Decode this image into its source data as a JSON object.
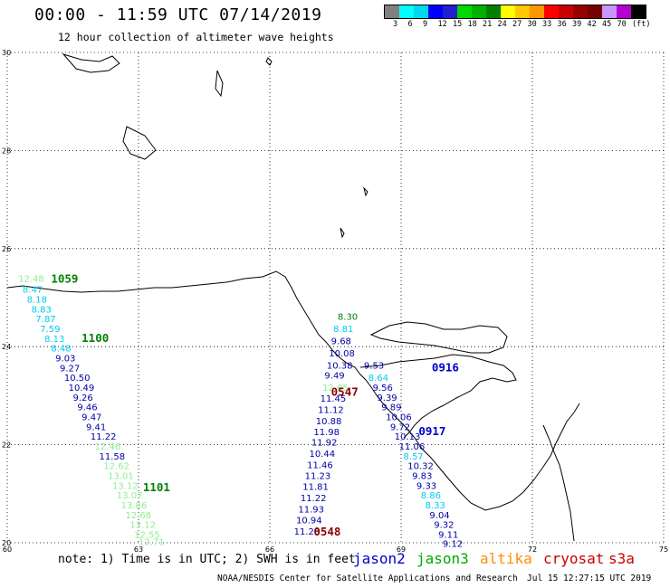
{
  "header": {
    "title": "00:00 - 11:59 UTC 07/14/2019",
    "subtitle": "12 hour collection of altimeter wave heights"
  },
  "legend": {
    "unit": "(ft)",
    "colors": [
      "#808080",
      "#00ffff",
      "#00d8f0",
      "#0000ff",
      "#2020d0",
      "#00d800",
      "#00b000",
      "#008000",
      "#ffff00",
      "#ffc800",
      "#ff9600",
      "#ff0000",
      "#c80000",
      "#960000",
      "#780000",
      "#c896ff",
      "#b400d0",
      "#000000"
    ],
    "labels": [
      "3",
      "6",
      "9",
      "12",
      "15",
      "18",
      "21",
      "24",
      "27",
      "30",
      "33",
      "36",
      "39",
      "42",
      "45",
      "70"
    ]
  },
  "chart_data": {
    "type": "map",
    "x_axis": {
      "ticks": [
        "60",
        "63",
        "66",
        "69",
        "72",
        "75"
      ],
      "range": [
        60,
        75
      ]
    },
    "y_axis": {
      "ticks": [
        "20",
        "22",
        "24",
        "26",
        "28",
        "30"
      ],
      "range": [
        20,
        30
      ]
    },
    "grid": true,
    "time_labels": [
      {
        "text": "1059",
        "color": "#008000",
        "lon": 61.0,
        "lat": 25.3
      },
      {
        "text": "1100",
        "color": "#008000",
        "lon": 61.7,
        "lat": 24.1
      },
      {
        "text": "1101",
        "color": "#008000",
        "lon": 63.1,
        "lat": 21.05
      },
      {
        "text": "0548",
        "color": "#8b0000",
        "lon": 67.0,
        "lat": 20.15
      },
      {
        "text": "0547",
        "color": "#8b0000",
        "lon": 67.4,
        "lat": 23.0
      },
      {
        "text": "0916",
        "color": "#0000cc",
        "lon": 69.7,
        "lat": 23.5
      },
      {
        "text": "0917",
        "color": "#0000cc",
        "lon": 69.4,
        "lat": 22.2
      }
    ],
    "tracks": [
      {
        "name": "jason3 1059-1101",
        "points": [
          {
            "lon": 60.25,
            "lat": 25.32,
            "v": "12.48",
            "c": "#90ee90"
          },
          {
            "lon": 60.35,
            "lat": 25.1,
            "v": "8.47",
            "c": "#00ccee"
          },
          {
            "lon": 60.45,
            "lat": 24.9,
            "v": "8.18",
            "c": "#00ccee"
          },
          {
            "lon": 60.55,
            "lat": 24.7,
            "v": "8.83",
            "c": "#00ccee"
          },
          {
            "lon": 60.65,
            "lat": 24.5,
            "v": "7.87",
            "c": "#00ccee"
          },
          {
            "lon": 60.75,
            "lat": 24.3,
            "v": "7.59",
            "c": "#00ccee"
          },
          {
            "lon": 60.85,
            "lat": 24.1,
            "v": "8.13",
            "c": "#00ccee"
          },
          {
            "lon": 61.0,
            "lat": 23.9,
            "v": "8.48",
            "c": "#00ccee"
          },
          {
            "lon": 61.1,
            "lat": 23.7,
            "v": "9.03",
            "c": "#0000aa"
          },
          {
            "lon": 61.2,
            "lat": 23.5,
            "v": "9.27",
            "c": "#0000aa"
          },
          {
            "lon": 61.3,
            "lat": 23.3,
            "v": "10.50",
            "c": "#0000aa"
          },
          {
            "lon": 61.4,
            "lat": 23.1,
            "v": "10.49",
            "c": "#0000aa"
          },
          {
            "lon": 61.5,
            "lat": 22.9,
            "v": "9.26",
            "c": "#0000aa"
          },
          {
            "lon": 61.6,
            "lat": 22.7,
            "v": "9.46",
            "c": "#0000aa"
          },
          {
            "lon": 61.7,
            "lat": 22.5,
            "v": "9.47",
            "c": "#0000aa"
          },
          {
            "lon": 61.8,
            "lat": 22.3,
            "v": "9.41",
            "c": "#0000aa"
          },
          {
            "lon": 61.9,
            "lat": 22.1,
            "v": "11.22",
            "c": "#0000aa"
          },
          {
            "lon": 62.0,
            "lat": 21.9,
            "v": "12.46",
            "c": "#90ee90"
          },
          {
            "lon": 62.1,
            "lat": 21.7,
            "v": "11.58",
            "c": "#0000aa"
          },
          {
            "lon": 62.2,
            "lat": 21.5,
            "v": "12.62",
            "c": "#90ee90"
          },
          {
            "lon": 62.3,
            "lat": 21.3,
            "v": "13.01",
            "c": "#90ee90"
          },
          {
            "lon": 62.4,
            "lat": 21.1,
            "v": "13.12",
            "c": "#90ee90"
          },
          {
            "lon": 62.5,
            "lat": 20.9,
            "v": "13.07",
            "c": "#90ee90"
          },
          {
            "lon": 62.6,
            "lat": 20.7,
            "v": "13.86",
            "c": "#90ee90"
          },
          {
            "lon": 62.7,
            "lat": 20.5,
            "v": "12.68",
            "c": "#90ee90"
          },
          {
            "lon": 62.8,
            "lat": 20.3,
            "v": "13.12",
            "c": "#90ee90"
          },
          {
            "lon": 62.9,
            "lat": 20.1,
            "v": "12.55",
            "c": "#90ee90"
          },
          {
            "lon": 63.0,
            "lat": 19.95,
            "v": "12.71",
            "c": "#90ee90"
          }
        ]
      },
      {
        "name": "cryosat 0547-0548",
        "points": [
          {
            "lon": 67.55,
            "lat": 24.55,
            "v": "8.30",
            "c": "#008000"
          },
          {
            "lon": 67.45,
            "lat": 24.3,
            "v": "8.81",
            "c": "#00ccee"
          },
          {
            "lon": 67.4,
            "lat": 24.05,
            "v": "9.68",
            "c": "#0000aa"
          },
          {
            "lon": 67.35,
            "lat": 23.8,
            "v": "10.08",
            "c": "#0000aa"
          },
          {
            "lon": 67.3,
            "lat": 23.55,
            "v": "10.38",
            "c": "#0000aa"
          },
          {
            "lon": 67.25,
            "lat": 23.35,
            "v": "9.49",
            "c": "#0000aa"
          },
          {
            "lon": 67.2,
            "lat": 23.1,
            "v": "12.05",
            "c": "#90ee90"
          },
          {
            "lon": 67.15,
            "lat": 22.88,
            "v": "11.45",
            "c": "#0000aa"
          },
          {
            "lon": 67.1,
            "lat": 22.65,
            "v": "11.12",
            "c": "#0000aa"
          },
          {
            "lon": 67.05,
            "lat": 22.42,
            "v": "10.88",
            "c": "#0000aa"
          },
          {
            "lon": 67.0,
            "lat": 22.2,
            "v": "11.98",
            "c": "#0000aa"
          },
          {
            "lon": 66.95,
            "lat": 21.98,
            "v": "11.92",
            "c": "#0000aa"
          },
          {
            "lon": 66.9,
            "lat": 21.75,
            "v": "10.44",
            "c": "#0000aa"
          },
          {
            "lon": 66.85,
            "lat": 21.52,
            "v": "11.46",
            "c": "#0000aa"
          },
          {
            "lon": 66.8,
            "lat": 21.3,
            "v": "11.23",
            "c": "#0000aa"
          },
          {
            "lon": 66.75,
            "lat": 21.08,
            "v": "11.81",
            "c": "#0000aa"
          },
          {
            "lon": 66.7,
            "lat": 20.85,
            "v": "11.22",
            "c": "#0000aa"
          },
          {
            "lon": 66.65,
            "lat": 20.62,
            "v": "11.93",
            "c": "#0000aa"
          },
          {
            "lon": 66.6,
            "lat": 20.4,
            "v": "10.94",
            "c": "#0000aa"
          },
          {
            "lon": 66.55,
            "lat": 20.17,
            "v": "11.26",
            "c": "#0000aa"
          }
        ]
      },
      {
        "name": "jason2 0916-0917",
        "points": [
          {
            "lon": 68.15,
            "lat": 23.55,
            "v": "9.53",
            "c": "#0000aa"
          },
          {
            "lon": 68.25,
            "lat": 23.3,
            "v": "8.64",
            "c": "#00ccee"
          },
          {
            "lon": 68.35,
            "lat": 23.1,
            "v": "9.56",
            "c": "#0000aa"
          },
          {
            "lon": 68.45,
            "lat": 22.9,
            "v": "9.39",
            "c": "#0000aa"
          },
          {
            "lon": 68.55,
            "lat": 22.7,
            "v": "9.89",
            "c": "#0000aa"
          },
          {
            "lon": 68.65,
            "lat": 22.5,
            "v": "10.06",
            "c": "#0000aa"
          },
          {
            "lon": 68.75,
            "lat": 22.3,
            "v": "9.72",
            "c": "#0000aa"
          },
          {
            "lon": 68.85,
            "lat": 22.1,
            "v": "10.13",
            "c": "#0000aa"
          },
          {
            "lon": 68.95,
            "lat": 21.9,
            "v": "11.06",
            "c": "#0000aa"
          },
          {
            "lon": 69.05,
            "lat": 21.7,
            "v": "8.57",
            "c": "#00ccee"
          },
          {
            "lon": 69.15,
            "lat": 21.5,
            "v": "10.32",
            "c": "#0000aa"
          },
          {
            "lon": 69.25,
            "lat": 21.3,
            "v": "9.83",
            "c": "#0000aa"
          },
          {
            "lon": 69.35,
            "lat": 21.1,
            "v": "9.33",
            "c": "#0000aa"
          },
          {
            "lon": 69.45,
            "lat": 20.9,
            "v": "8.86",
            "c": "#00ccee"
          },
          {
            "lon": 69.55,
            "lat": 20.7,
            "v": "8.33",
            "c": "#00ccee"
          },
          {
            "lon": 69.65,
            "lat": 20.5,
            "v": "9.04",
            "c": "#0000aa"
          },
          {
            "lon": 69.75,
            "lat": 20.3,
            "v": "9.32",
            "c": "#0000aa"
          },
          {
            "lon": 69.85,
            "lat": 20.1,
            "v": "9.11",
            "c": "#0000aa"
          },
          {
            "lon": 69.95,
            "lat": 19.92,
            "v": "9.12",
            "c": "#0000aa"
          }
        ]
      }
    ]
  },
  "footer": {
    "note": "note: 1) Time is in UTC; 2) SWH is in feet",
    "satellites": [
      {
        "name": "jason2",
        "color": "#0000cc"
      },
      {
        "name": "jason3",
        "color": "#00aa00"
      },
      {
        "name": "altika",
        "color": "#ff8c00"
      },
      {
        "name": "cryosat",
        "color": "#cc0000"
      },
      {
        "name": "s3a",
        "color": "#cc0000"
      }
    ],
    "credit": "NOAA/NESDIS Center for Satellite Applications and Research",
    "timestamp": "Jul 15 12:27:15 UTC 2019"
  }
}
